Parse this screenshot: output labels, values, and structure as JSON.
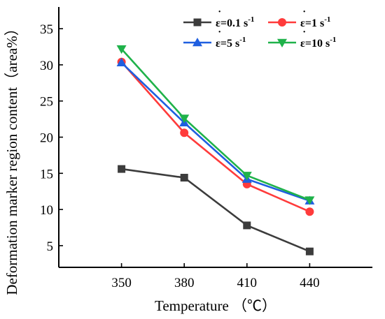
{
  "chart_data": {
    "type": "line",
    "xlabel": "Temperature （℃）",
    "ylabel": "Deformation marker region content（area%）",
    "x": [
      350,
      380,
      410,
      440
    ],
    "xlim": [
      320,
      470
    ],
    "ylim": [
      2,
      38
    ],
    "yticks": [
      5,
      10,
      15,
      20,
      25,
      30,
      35
    ],
    "grid": false,
    "legend_position": "top-right",
    "series": [
      {
        "name": "ε=0.1 s-1",
        "label_main": "ε=0.1 s",
        "label_sup": "-1",
        "marker": "square",
        "color": "#3c3c3c",
        "values": [
          15.6,
          14.4,
          7.8,
          4.2
        ]
      },
      {
        "name": "ε=1 s-1",
        "label_main": "ε=1 s",
        "label_sup": "-1",
        "marker": "circle",
        "color": "#ff3b3b",
        "values": [
          30.4,
          20.6,
          13.5,
          9.7
        ]
      },
      {
        "name": "ε=5 s-1",
        "label_main": "ε=5 s",
        "label_sup": "-1",
        "marker": "triangle-up",
        "color": "#1f5fe0",
        "values": [
          30.3,
          22.0,
          14.2,
          11.2
        ]
      },
      {
        "name": "ε=10 s-1",
        "label_main": "ε=10 s",
        "label_sup": "-1",
        "marker": "triangle-down",
        "color": "#1fb24a",
        "values": [
          32.2,
          22.6,
          14.7,
          11.3
        ]
      }
    ]
  }
}
